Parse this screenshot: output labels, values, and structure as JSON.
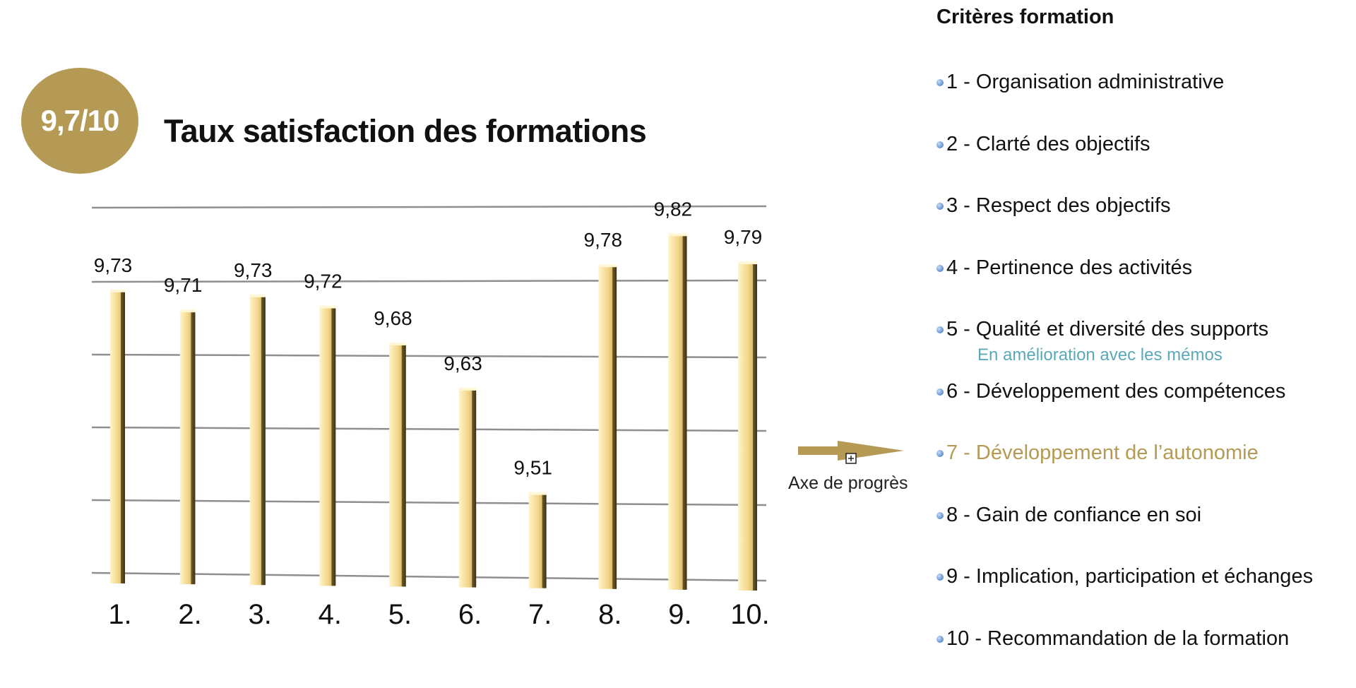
{
  "badge": {
    "text": "9,7/10"
  },
  "title": "Taux satisfaction des formations",
  "colors": {
    "gold": "#b49a55",
    "bar_light": "#fbe7a8",
    "bar_dark": "#7c6a33",
    "teal_note": "#5aa9b9",
    "grid": "#8f8f8f"
  },
  "chart_data": {
    "type": "bar",
    "categories": [
      "1.",
      "2.",
      "3.",
      "4.",
      "5.",
      "6.",
      "7.",
      "8.",
      "9.",
      "10."
    ],
    "values": [
      9.73,
      9.71,
      9.73,
      9.72,
      9.68,
      9.63,
      9.51,
      9.78,
      9.82,
      9.79
    ],
    "value_labels": [
      "9,73",
      "9,71",
      "9,73",
      "9,72",
      "9,68",
      "9,63",
      "9,51",
      "9,78",
      "9,82",
      "9,79"
    ],
    "title": "Taux satisfaction des formations",
    "grid": true,
    "style": "3d-cylinder"
  },
  "criteria": {
    "title": "Critères formation",
    "items": [
      {
        "label": "1 - Organisation administrative"
      },
      {
        "label": "2 - Clarté des objectifs"
      },
      {
        "label": "3 - Respect des objectifs"
      },
      {
        "label": "4 - Pertinence des activités"
      },
      {
        "label": "5 - Qualité et diversité des supports",
        "note": "En amélioration avec les mémos"
      },
      {
        "label": "6 - Développement des compétences"
      },
      {
        "label": "7 - Développement de l’autonomie",
        "highlight": true
      },
      {
        "label": "8 - Gain de confiance en soi"
      },
      {
        "label": "9 - Implication, participation  et échanges"
      },
      {
        "label": "10 - Recommandation de la formation"
      }
    ]
  },
  "progress_axis": {
    "label": "Axe de progrès",
    "icon": "arrow-right-icon"
  }
}
